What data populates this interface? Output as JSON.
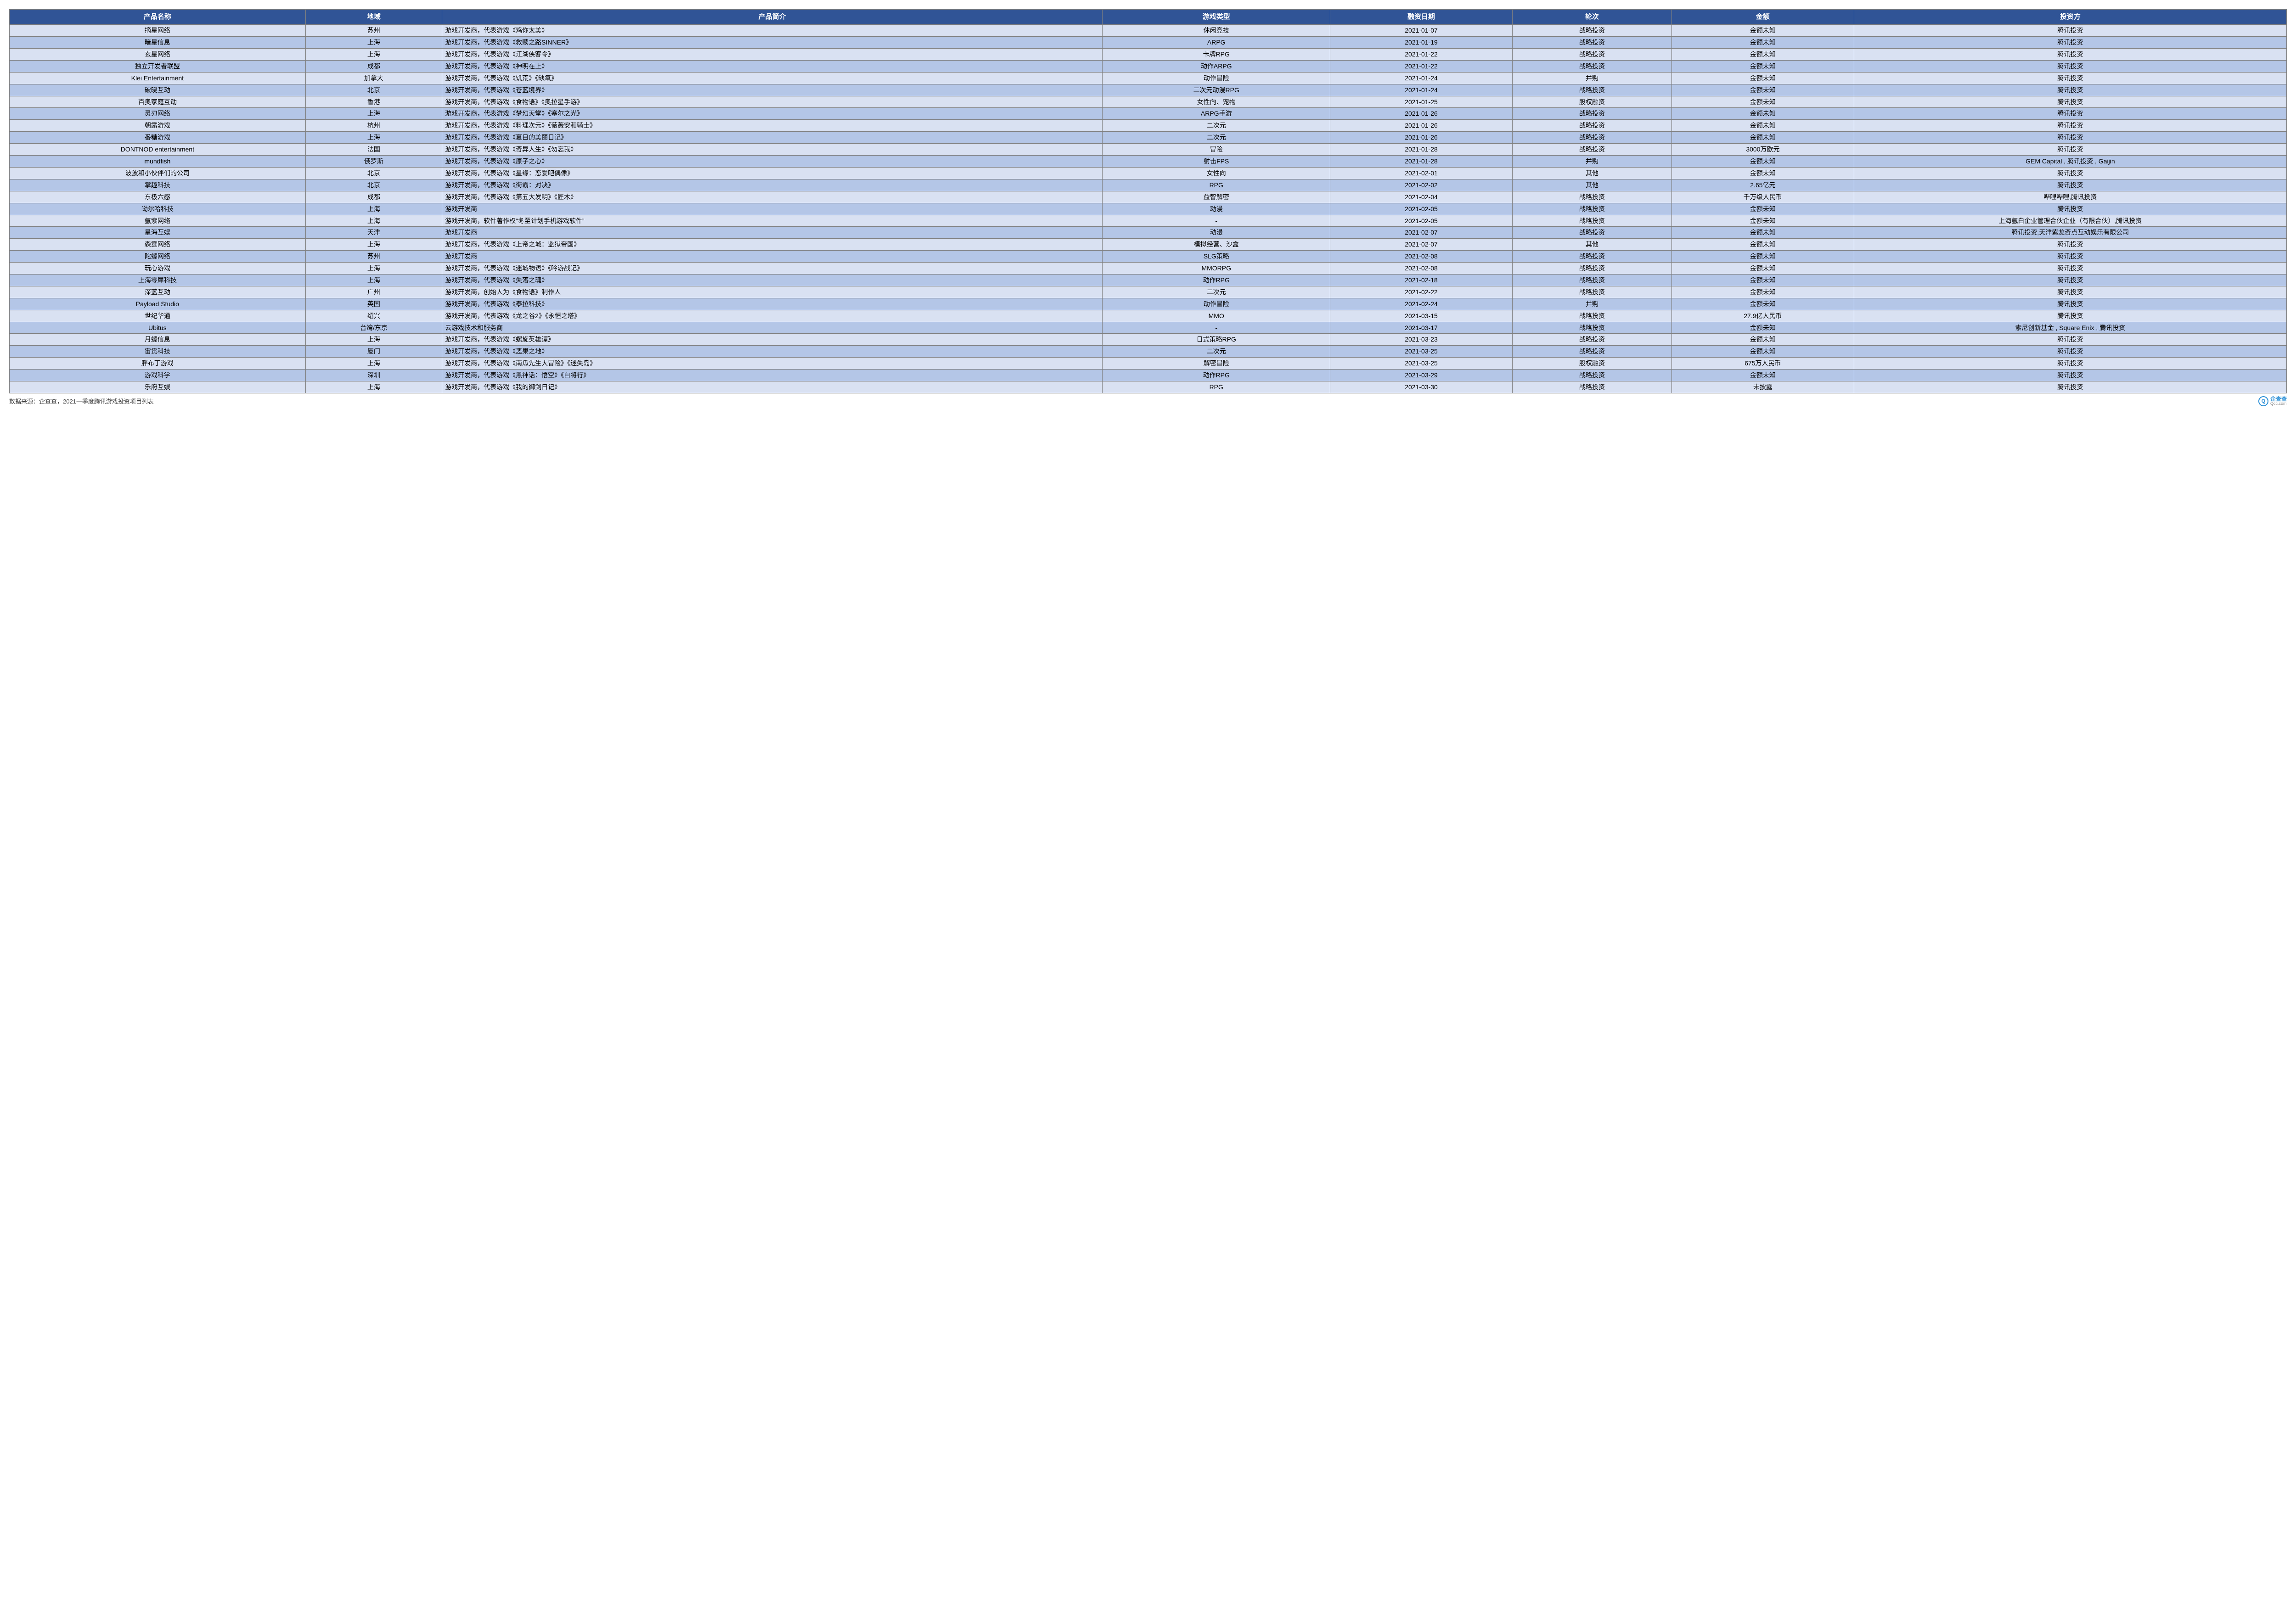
{
  "table": {
    "columns": [
      {
        "key": "name",
        "label": "产品名称",
        "width": "13%",
        "align": "center"
      },
      {
        "key": "region",
        "label": "地域",
        "width": "6%",
        "align": "center"
      },
      {
        "key": "desc",
        "label": "产品简介",
        "width": "29%",
        "align": "left"
      },
      {
        "key": "genre",
        "label": "游戏类型",
        "width": "10%",
        "align": "center"
      },
      {
        "key": "date",
        "label": "融资日期",
        "width": "8%",
        "align": "center"
      },
      {
        "key": "round",
        "label": "轮次",
        "width": "7%",
        "align": "center"
      },
      {
        "key": "amount",
        "label": "金额",
        "width": "8%",
        "align": "center"
      },
      {
        "key": "investor",
        "label": "投资方",
        "width": "19%",
        "align": "center"
      }
    ],
    "header_bg": "#305496",
    "header_fg": "#ffffff",
    "row_even_bg": "#d9e1f2",
    "row_odd_bg": "#b4c6e7",
    "border_color": "#7f7f7f",
    "rows": [
      [
        "摘星网络",
        "苏州",
        "游戏开发商，代表游戏《鸡你太美》",
        "休闲竞技",
        "2021-01-07",
        "战略投资",
        "金额未知",
        "腾讯投资"
      ],
      [
        "暗星信息",
        "上海",
        "游戏开发商，代表游戏《救赎之路SINNER》",
        "ARPG",
        "2021-01-19",
        "战略投资",
        "金额未知",
        "腾讯投资"
      ],
      [
        "玄星网络",
        "上海",
        "游戏开发商，代表游戏《江湖侠客令》",
        "卡牌RPG",
        "2021-01-22",
        "战略投资",
        "金额未知",
        "腾讯投资"
      ],
      [
        "独立开发者联盟",
        "成都",
        "游戏开发商，代表游戏《神明在上》",
        "动作ARPG",
        "2021-01-22",
        "战略投资",
        "金额未知",
        "腾讯投资"
      ],
      [
        "Klei Entertainment",
        "加拿大",
        "游戏开发商，代表游戏《饥荒》《缺氧》",
        "动作冒险",
        "2021-01-24",
        "并购",
        "金额未知",
        "腾讯投资"
      ],
      [
        "破晓互动",
        "北京",
        "游戏开发商，代表游戏《苍蓝境界》",
        "二次元动漫RPG",
        "2021-01-24",
        "战略投资",
        "金额未知",
        "腾讯投资"
      ],
      [
        "百奥家庭互动",
        "香港",
        "游戏开发商，代表游戏《食物语》《奥拉星手游》",
        "女性向、宠物",
        "2021-01-25",
        "股权融资",
        "金额未知",
        "腾讯投资"
      ],
      [
        "灵刃网络",
        "上海",
        "游戏开发商，代表游戏《梦幻天堂》《塞尔之光》",
        "ARPG手游",
        "2021-01-26",
        "战略投资",
        "金额未知",
        "腾讯投资"
      ],
      [
        "朝露游戏",
        "杭州",
        "游戏开发商，代表游戏《料理次元》《薇薇安和骑士》",
        "二次元",
        "2021-01-26",
        "战略投资",
        "金额未知",
        "腾讯投资"
      ],
      [
        "番糖游戏",
        "上海",
        "游戏开发商，代表游戏《夏目的美丽日记》",
        "二次元",
        "2021-01-26",
        "战略投资",
        "金额未知",
        "腾讯投资"
      ],
      [
        "DONTNOD entertainment",
        "法国",
        "游戏开发商，代表游戏《奇异人生》《勿忘我》",
        "冒险",
        "2021-01-28",
        "战略投资",
        "3000万欧元",
        "腾讯投资"
      ],
      [
        "mundfish",
        "俄罗斯",
        "游戏开发商，代表游戏《原子之心》",
        "射击FPS",
        "2021-01-28",
        "并购",
        "金额未知",
        "GEM Capital , 腾讯投资 , Gaijin"
      ],
      [
        "波波和小伙伴们的公司",
        "北京",
        "游戏开发商，代表游戏《星缘：恋爱吧偶像》",
        "女性向",
        "2021-02-01",
        "其他",
        "金额未知",
        "腾讯投资"
      ],
      [
        "掌趣科技",
        "北京",
        "游戏开发商，代表游戏《街霸：对决》",
        "RPG",
        "2021-02-02",
        "其他",
        "2.65亿元",
        "腾讯投资"
      ],
      [
        "东极六感",
        "成都",
        "游戏开发商，代表游戏《第五大发明》《匠木》",
        "益智解密",
        "2021-02-04",
        "战略投资",
        "千万级人民币",
        "哔哩哔哩,腾讯投资"
      ],
      [
        "呦尔哈科技",
        "上海",
        "游戏开发商",
        "动漫",
        "2021-02-05",
        "战略投资",
        "金额未知",
        "腾讯投资"
      ],
      [
        "氩紫网络",
        "上海",
        "游戏开发商，软件著作权“冬至计划手机游戏软件”",
        "-",
        "2021-02-05",
        "战略投资",
        "金额未知",
        "上海氩白企业管理合伙企业（有限合伙）,腾讯投资"
      ],
      [
        "星海互娱",
        "天津",
        "游戏开发商",
        "动漫",
        "2021-02-07",
        "战略投资",
        "金额未知",
        "腾讯投资,天津紫龙奇点互动娱乐有限公司"
      ],
      [
        "森霆网络",
        "上海",
        "游戏开发商，代表游戏《上帝之城：监狱帝国》",
        "模拟经营、沙盒",
        "2021-02-07",
        "其他",
        "金额未知",
        "腾讯投资"
      ],
      [
        "陀螺网络",
        "苏州",
        "游戏开发商",
        "SLG策略",
        "2021-02-08",
        "战略投资",
        "金额未知",
        "腾讯投资"
      ],
      [
        "玩心游戏",
        "上海",
        "游戏开发商，代表游戏《迷城物语》《吟游战记》",
        "MMORPG",
        "2021-02-08",
        "战略投资",
        "金额未知",
        "腾讯投资"
      ],
      [
        "上海零犀科技",
        "上海",
        "游戏开发商，代表游戏《失落之魂》",
        "动作RPG",
        "2021-02-18",
        "战略投资",
        "金额未知",
        "腾讯投资"
      ],
      [
        "深蓝互动",
        "广州",
        "游戏开发商，创始人为《食物语》制作人",
        "二次元",
        "2021-02-22",
        "战略投资",
        "金额未知",
        "腾讯投资"
      ],
      [
        "Payload Studio",
        "英国",
        "游戏开发商，代表游戏《泰拉科技》",
        "动作冒险",
        "2021-02-24",
        "并购",
        "金额未知",
        "腾讯投资"
      ],
      [
        "世纪华通",
        "绍兴",
        "游戏开发商，代表游戏《龙之谷2》《永恒之塔》",
        "MMO",
        "2021-03-15",
        "战略投资",
        "27.9亿人民币",
        "腾讯投资"
      ],
      [
        "Ubitus",
        "台湾/东京",
        "云游戏技术和服务商",
        "-",
        "2021-03-17",
        "战略投资",
        "金额未知",
        "索尼创新基金 , Square Enix , 腾讯投资"
      ],
      [
        "月螺信息",
        "上海",
        "游戏开发商，代表游戏《螺旋英雄谭》",
        "日式策略RPG",
        "2021-03-23",
        "战略投资",
        "金额未知",
        "腾讯投资"
      ],
      [
        "宙贯科技",
        "厦门",
        "游戏开发商，代表游戏《恶果之地》",
        "二次元",
        "2021-03-25",
        "战略投资",
        "金额未知",
        "腾讯投资"
      ],
      [
        "胖布丁游戏",
        "上海",
        "游戏开发商，代表游戏《南瓜先生大冒险》《迷失岛》",
        "解密冒险",
        "2021-03-25",
        "股权融资",
        "675万人民币",
        "腾讯投资"
      ],
      [
        "游戏科学",
        "深圳",
        "游戏开发商，代表游戏《黑神话：悟空》《白将行》",
        "动作RPG",
        "2021-03-29",
        "战略投资",
        "金额未知",
        "腾讯投资"
      ],
      [
        "乐府互娱",
        "上海",
        "游戏开发商，代表游戏《我的御剑日记》",
        "RPG",
        "2021-03-30",
        "战略投资",
        "未披露",
        "腾讯投资"
      ]
    ]
  },
  "footer": {
    "source_text": "数据来源：企查查，2021一季度腾讯游戏投资项目列表",
    "logo_cn": "企查查",
    "logo_en": "Qcc.com"
  }
}
